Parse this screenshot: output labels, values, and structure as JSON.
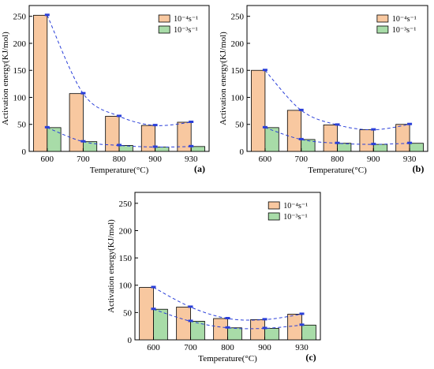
{
  "legend": {
    "series_a": "10⁻⁴s⁻¹",
    "series_b": "10⁻³s⁻¹"
  },
  "colors": {
    "bar_a": "#f8c8a0",
    "bar_b": "#a8dca8",
    "trend": "#2a3fd9",
    "marker": "#2a3fd9"
  },
  "chart_data": [
    {
      "type": "bar",
      "panel": "(a)",
      "categories": [
        "600",
        "700",
        "800",
        "900",
        "930"
      ],
      "xlabel": "Temperature(°C)",
      "ylabel": "Activation energy(KJ/mol)",
      "ylim": [
        0,
        270
      ],
      "yticks": [
        0,
        50,
        100,
        150,
        200,
        250
      ],
      "series": [
        {
          "name": "10⁻⁴s⁻¹",
          "values": [
            252,
            107,
            65,
            48,
            54
          ]
        },
        {
          "name": "10⁻³s⁻¹",
          "values": [
            44,
            18,
            11,
            8,
            9
          ]
        }
      ],
      "trend_lines": "dashed"
    },
    {
      "type": "bar",
      "panel": "(b)",
      "categories": [
        "600",
        "700",
        "800",
        "900",
        "930"
      ],
      "xlabel": "Temperature(°C)",
      "ylabel": "Activation energy(KJ/mol)",
      "ylim": [
        0,
        270
      ],
      "yticks": [
        0,
        50,
        100,
        150,
        200,
        250
      ],
      "series": [
        {
          "name": "10⁻⁴s⁻¹",
          "values": [
            150,
            76,
            49,
            40,
            50
          ]
        },
        {
          "name": "10⁻³s⁻¹",
          "values": [
            44,
            22,
            15,
            13,
            15
          ]
        }
      ],
      "trend_lines": "dashed"
    },
    {
      "type": "bar",
      "panel": "(c)",
      "categories": [
        "600",
        "700",
        "800",
        "900",
        "930"
      ],
      "xlabel": "Temperature(°C)",
      "ylabel": "Activation energy(KJ/mol)",
      "ylim": [
        0,
        270
      ],
      "yticks": [
        0,
        50,
        100,
        150,
        200,
        250
      ],
      "series": [
        {
          "name": "10⁻⁴s⁻¹",
          "values": [
            96,
            60,
            39,
            37,
            47
          ]
        },
        {
          "name": "10⁻³s⁻¹",
          "values": [
            56,
            34,
            22,
            21,
            27
          ]
        }
      ],
      "trend_lines": "dashed"
    }
  ]
}
